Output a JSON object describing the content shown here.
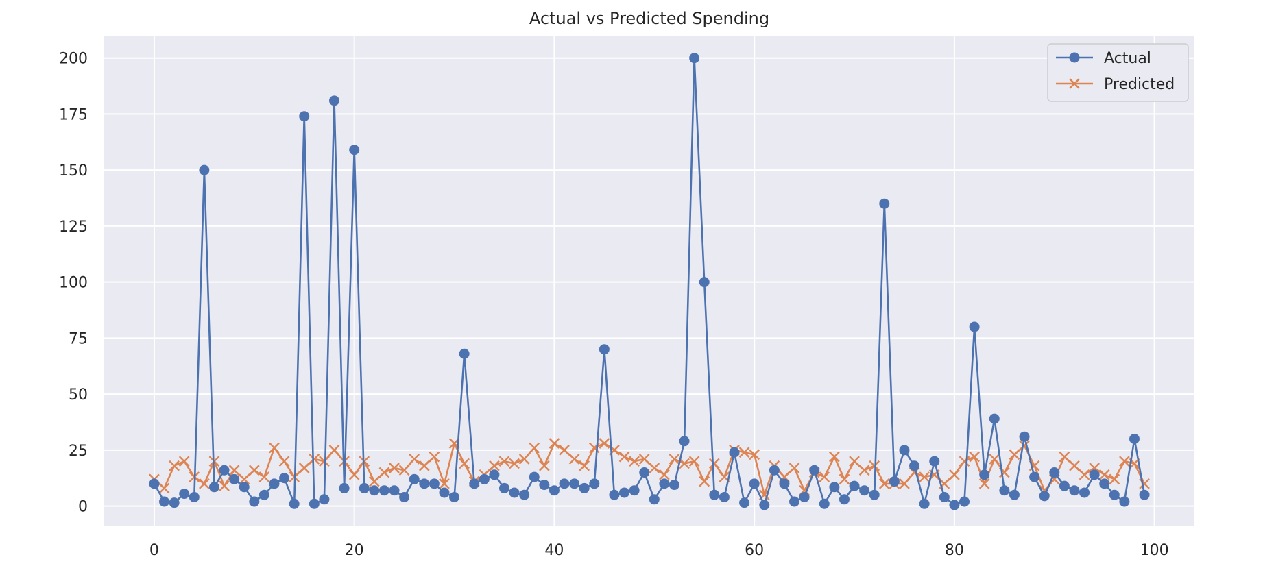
{
  "colors": {
    "background": "#EAEAF2",
    "grid": "#FFFFFF",
    "actual": "#4C72B0",
    "predicted": "#DD8452",
    "legend_border": "#CCCCCC"
  },
  "chart_data": {
    "type": "line",
    "title": "Actual vs Predicted Spending",
    "xlabel": "",
    "ylabel": "",
    "xlim": [
      -5,
      104
    ],
    "ylim": [
      -9,
      210
    ],
    "x_ticks": [
      0,
      20,
      40,
      60,
      80,
      100
    ],
    "y_ticks": [
      0,
      25,
      50,
      75,
      100,
      125,
      150,
      175,
      200
    ],
    "grid": true,
    "legend_position": "top-right",
    "x": [
      0,
      1,
      2,
      3,
      4,
      5,
      6,
      7,
      8,
      9,
      10,
      11,
      12,
      13,
      14,
      15,
      16,
      17,
      18,
      19,
      20,
      21,
      22,
      23,
      24,
      25,
      26,
      27,
      28,
      29,
      30,
      31,
      32,
      33,
      34,
      35,
      36,
      37,
      38,
      39,
      40,
      41,
      42,
      43,
      44,
      45,
      46,
      47,
      48,
      49,
      50,
      51,
      52,
      53,
      54,
      55,
      56,
      57,
      58,
      59,
      60,
      61,
      62,
      63,
      64,
      65,
      66,
      67,
      68,
      69,
      70,
      71,
      72,
      73,
      74,
      75,
      76,
      77,
      78,
      79,
      80,
      81,
      82,
      83,
      84,
      85,
      86,
      87,
      88,
      89,
      90,
      91,
      92,
      93,
      94,
      95,
      96,
      97,
      98,
      99
    ],
    "series": [
      {
        "name": "Actual",
        "marker": "circle",
        "values": [
          10,
          2,
          1.5,
          5.5,
          4,
          150,
          8.5,
          16,
          12,
          8.5,
          2,
          5,
          10,
          12.5,
          1,
          174,
          1,
          3,
          181,
          8,
          159,
          8,
          7,
          7,
          7,
          4,
          12,
          10,
          10,
          6,
          4,
          68,
          10,
          12,
          14,
          8,
          6,
          5,
          13,
          9.5,
          7,
          10,
          10,
          8,
          10,
          70,
          5,
          6,
          7,
          15,
          3,
          10,
          9.5,
          29,
          200,
          100,
          5,
          4,
          24,
          1.5,
          10,
          0.5,
          16,
          10,
          2,
          4,
          16,
          1,
          8.5,
          3,
          9,
          7,
          5,
          135,
          11,
          25,
          18,
          1,
          20,
          4,
          0.5,
          2,
          80,
          14,
          39,
          7,
          5,
          31,
          13,
          4.5,
          15,
          9,
          7,
          6,
          14,
          10,
          5,
          2,
          30,
          5
        ]
      },
      {
        "name": "Predicted",
        "marker": "x",
        "values": [
          12,
          8,
          18,
          20,
          13,
          10,
          20,
          9,
          16,
          12,
          16,
          13,
          26,
          20,
          13,
          17,
          21,
          20,
          25,
          20,
          14,
          20,
          11,
          15,
          17,
          16,
          21,
          18,
          22,
          10,
          28,
          19,
          11,
          14,
          18,
          20,
          19,
          21,
          26,
          18,
          28,
          25,
          21,
          18,
          26,
          28,
          25,
          22,
          20,
          21,
          17,
          14,
          21,
          19,
          20,
          11,
          19,
          13,
          25,
          24,
          23,
          5,
          18,
          13,
          17,
          7,
          15,
          13,
          22,
          12,
          20,
          16,
          18,
          10,
          10,
          10,
          15,
          13,
          14,
          10,
          14,
          20,
          22,
          10,
          21,
          15,
          23,
          27,
          18,
          7,
          12,
          22,
          18,
          14,
          17,
          14,
          12,
          20,
          19,
          10
        ]
      }
    ]
  }
}
